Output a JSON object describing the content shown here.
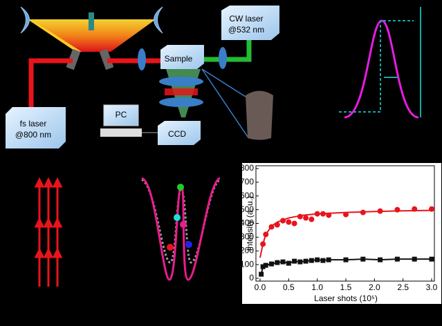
{
  "diagram": {
    "cw_laser": [
      "CW laser",
      "@532 nm"
    ],
    "sample": "Sample",
    "fs_laser": [
      "fs laser",
      "@800 nm"
    ],
    "pc": "PC",
    "ccd": "CCD"
  },
  "chart_data": {
    "type": "scatter",
    "xlabel": "Laser shots (10⁵)",
    "ylabel": "Intensity (a. u.)",
    "xlim": [
      0,
      3
    ],
    "xticks": [
      {
        "value": 0,
        "label": "0.0"
      },
      {
        "value": 0.5,
        "label": "0.5"
      },
      {
        "value": 1,
        "label": "1.0"
      },
      {
        "value": 1.5,
        "label": "1.5"
      },
      {
        "value": 2,
        "label": "2.0"
      },
      {
        "value": 2.5,
        "label": "2.5"
      },
      {
        "value": 3,
        "label": "3.0"
      }
    ],
    "ylim": [
      0,
      800
    ],
    "yticks": [
      0,
      100,
      200,
      300,
      400,
      500,
      600,
      700,
      800
    ],
    "series": [
      {
        "color": "#e8141c",
        "marker": "circle",
        "line": false,
        "x": [
          0.05,
          0.1,
          0.2,
          0.3,
          0.4,
          0.5,
          0.6,
          0.7,
          0.8,
          0.9,
          1.0,
          1.1,
          1.2,
          1.5,
          1.8,
          2.1,
          2.4,
          2.7,
          3.0
        ],
        "values": [
          250,
          320,
          375,
          390,
          420,
          410,
          400,
          450,
          440,
          430,
          470,
          470,
          460,
          465,
          480,
          490,
          500,
          505,
          505
        ]
      },
      {
        "color": "#e8141c",
        "marker": "none",
        "line": true,
        "x": [
          0,
          0.05,
          0.1,
          0.2,
          0.3,
          0.5,
          0.75,
          1,
          1.5,
          2,
          2.5,
          3
        ],
        "values": [
          150,
          250,
          320,
          380,
          410,
          440,
          460,
          470,
          480,
          487,
          492,
          495
        ]
      },
      {
        "color": "#111111",
        "marker": "square",
        "line": true,
        "x": [
          0.02,
          0.05,
          0.1,
          0.2,
          0.3,
          0.4,
          0.5,
          0.6,
          0.7,
          0.8,
          0.9,
          1.0,
          1.1,
          1.2,
          1.5,
          1.8,
          2.1,
          2.4,
          2.7,
          3.0
        ],
        "values": [
          30,
          85,
          95,
          105,
          115,
          120,
          110,
          125,
          120,
          125,
          130,
          135,
          130,
          135,
          135,
          140,
          135,
          140,
          140,
          140
        ]
      }
    ]
  }
}
